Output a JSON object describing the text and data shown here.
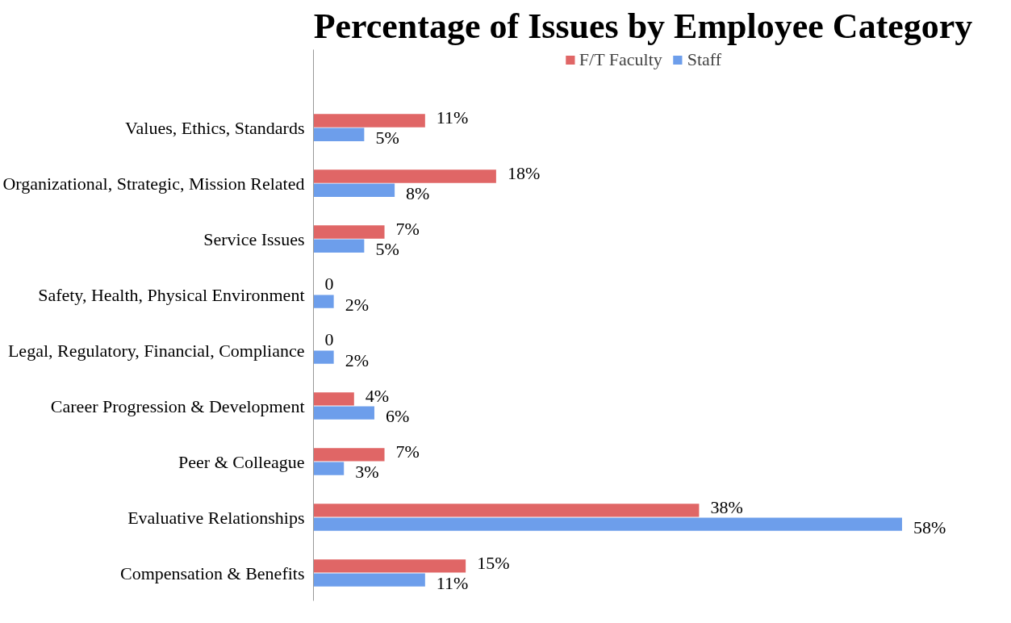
{
  "chart_data": {
    "type": "bar",
    "orientation": "horizontal",
    "title": "Percentage of Issues by Employee Category",
    "categories": [
      "Values, Ethics, Standards",
      "Organizational, Strategic, Mission Related",
      "Service Issues",
      "Safety, Health, Physical Environment",
      "Legal, Regulatory, Financial, Compliance",
      "Career Progression & Development",
      "Peer & Colleague",
      "Evaluative Relationships",
      "Compensation & Benefits"
    ],
    "series": [
      {
        "name": "F/T Faculty",
        "color": "#e06666",
        "values": [
          11,
          18,
          7,
          0,
          0,
          4,
          7,
          38,
          15
        ],
        "value_labels": [
          "11%",
          "18%",
          "7%",
          "0",
          "0",
          "4%",
          "7%",
          "38%",
          "15%"
        ]
      },
      {
        "name": "Staff",
        "color": "#6d9eeb",
        "values": [
          5,
          8,
          5,
          2,
          2,
          6,
          3,
          58,
          11
        ],
        "value_labels": [
          "5%",
          "8%",
          "5%",
          "2%",
          "2%",
          "6%",
          "3%",
          "58%",
          "11%"
        ]
      }
    ],
    "legend": "top",
    "grid": false
  }
}
